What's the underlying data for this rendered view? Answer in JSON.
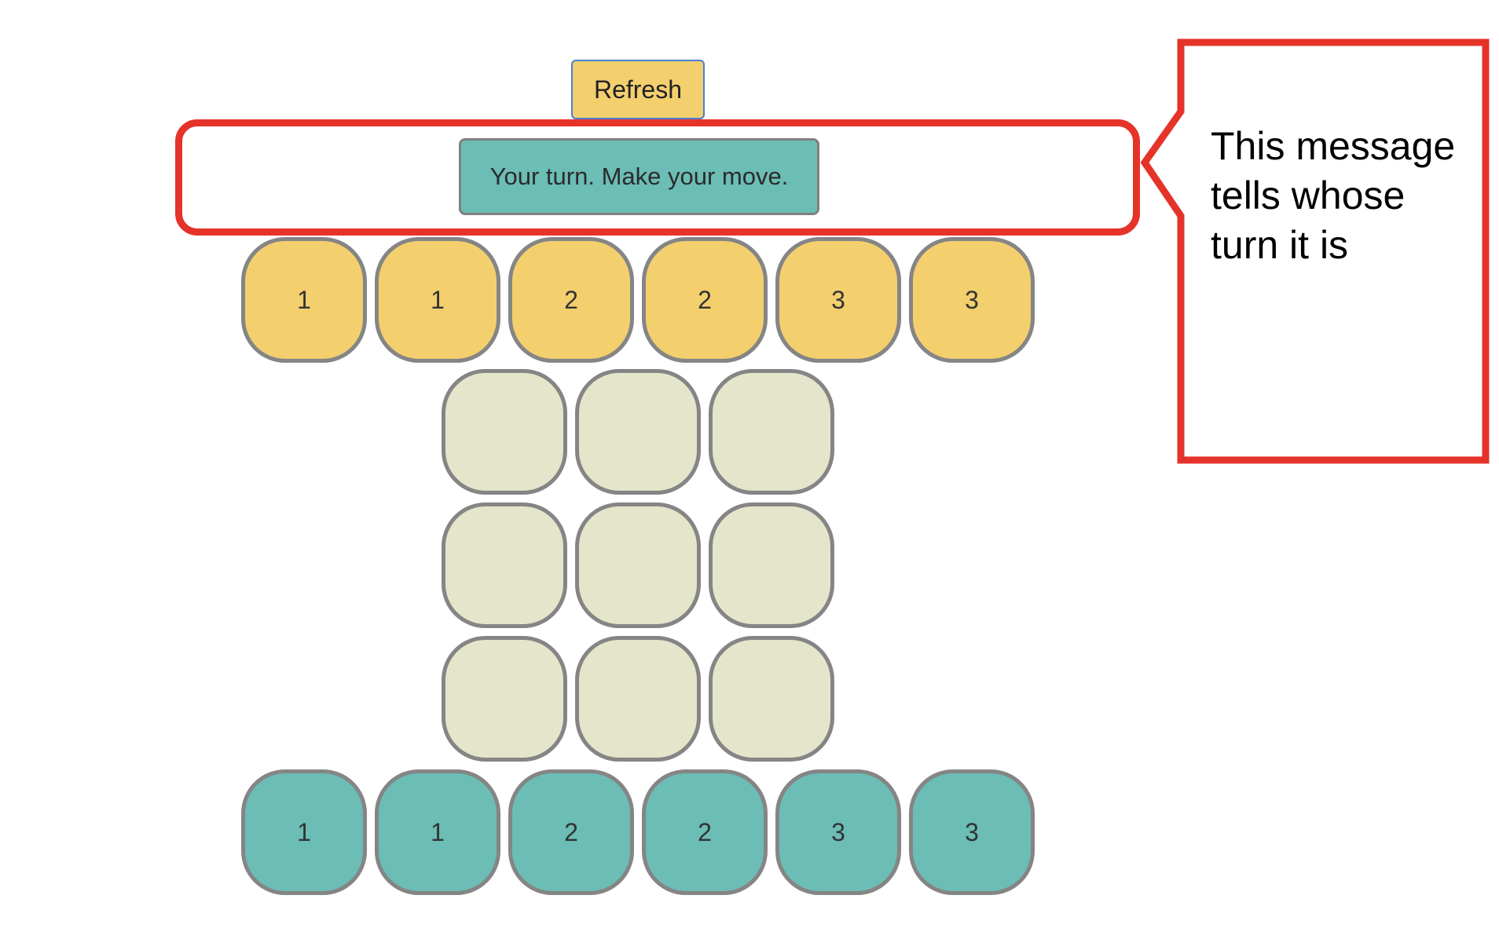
{
  "toolbar": {
    "refresh_label": "Refresh"
  },
  "status": {
    "message": "Your turn. Make your move."
  },
  "opponent_hand": {
    "color": "#f3cf6e",
    "tiles": [
      "1",
      "1",
      "2",
      "2",
      "3",
      "3"
    ]
  },
  "player_hand": {
    "color": "#6bbdb5",
    "tiles": [
      "1",
      "1",
      "2",
      "2",
      "3",
      "3"
    ]
  },
  "board": {
    "rows": 3,
    "cols": 3,
    "cells": [
      [
        "",
        "",
        ""
      ],
      [
        "",
        "",
        ""
      ],
      [
        "",
        "",
        ""
      ]
    ]
  },
  "annotation": {
    "text": "This message tells whose turn it is",
    "color": "#e5332a"
  }
}
